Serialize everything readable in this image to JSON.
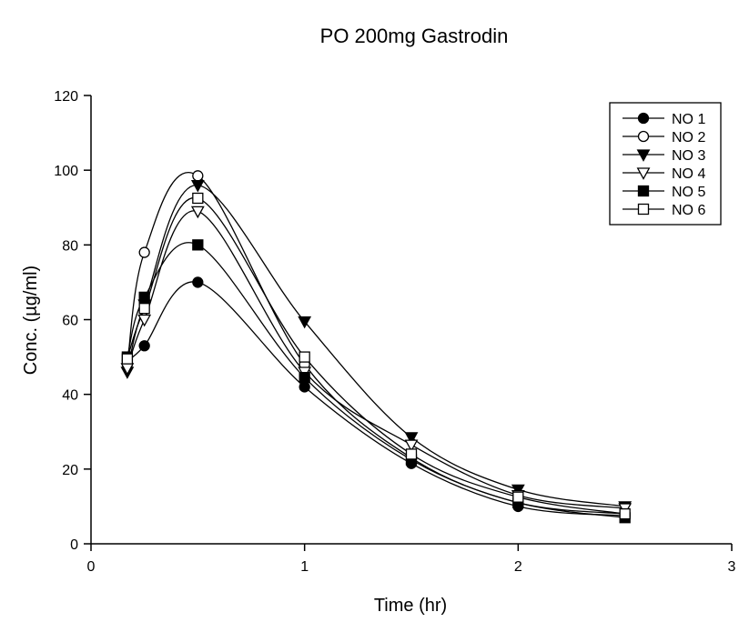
{
  "chart_data": {
    "type": "line",
    "title": "PO 200mg Gastrodin",
    "xlabel": "Time (hr)",
    "ylabel": "Conc. (µg/ml)",
    "xlim": [
      0,
      3
    ],
    "ylim": [
      0,
      120
    ],
    "x_ticks": [
      "0",
      "1",
      "2",
      "3"
    ],
    "y_ticks": [
      "0",
      "20",
      "40",
      "60",
      "80",
      "100",
      "120"
    ],
    "grid": false,
    "legend_position": "top-right",
    "line_color": "#000000",
    "series": [
      {
        "name": "NO 1",
        "marker": "filled-circle",
        "points": [
          [
            0.17,
            49
          ],
          [
            0.25,
            53
          ],
          [
            0.5,
            70
          ],
          [
            1.0,
            42
          ],
          [
            1.5,
            21.5
          ],
          [
            2.0,
            10
          ],
          [
            2.5,
            7.5
          ]
        ]
      },
      {
        "name": "NO 2",
        "marker": "open-circle",
        "points": [
          [
            0.17,
            48
          ],
          [
            0.25,
            78
          ],
          [
            0.5,
            98.5
          ],
          [
            1.0,
            48
          ],
          [
            1.5,
            23
          ],
          [
            2.0,
            11
          ],
          [
            2.5,
            8
          ]
        ]
      },
      {
        "name": "NO 3",
        "marker": "filled-triangle-down",
        "points": [
          [
            0.17,
            46
          ],
          [
            0.25,
            64
          ],
          [
            0.5,
            96
          ],
          [
            1.0,
            59.5
          ],
          [
            1.5,
            28.5
          ],
          [
            2.0,
            14.5
          ],
          [
            2.5,
            10
          ]
        ]
      },
      {
        "name": "NO 4",
        "marker": "open-triangle-down",
        "points": [
          [
            0.17,
            47
          ],
          [
            0.25,
            60
          ],
          [
            0.5,
            89
          ],
          [
            1.0,
            46
          ],
          [
            1.5,
            26.5
          ],
          [
            2.0,
            13
          ],
          [
            2.5,
            9.5
          ]
        ]
      },
      {
        "name": "NO 5",
        "marker": "filled-square",
        "points": [
          [
            0.17,
            50
          ],
          [
            0.25,
            66
          ],
          [
            0.5,
            80
          ],
          [
            1.0,
            44.5
          ],
          [
            1.5,
            22.5
          ],
          [
            2.0,
            11
          ],
          [
            2.5,
            7
          ]
        ]
      },
      {
        "name": "NO 6",
        "marker": "open-square",
        "points": [
          [
            0.17,
            49.5
          ],
          [
            0.25,
            63
          ],
          [
            0.5,
            92.5
          ],
          [
            1.0,
            50
          ],
          [
            1.5,
            24
          ],
          [
            2.0,
            12.5
          ],
          [
            2.5,
            8
          ]
        ]
      }
    ]
  }
}
